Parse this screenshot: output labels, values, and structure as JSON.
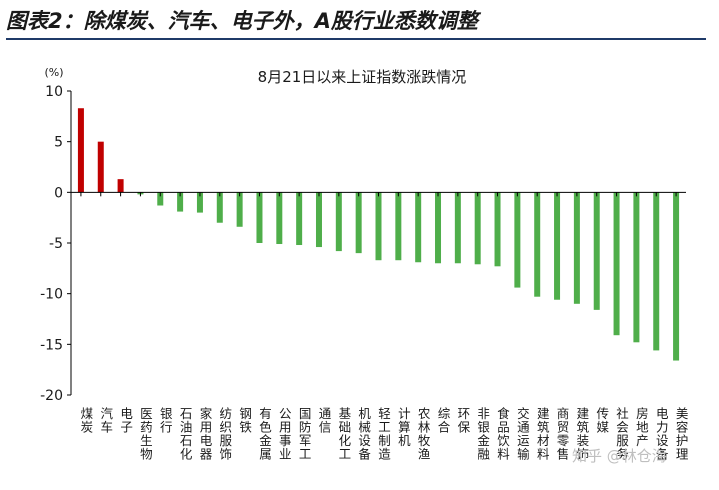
{
  "figure_title": "图表2：除煤炭、汽车、电子外，A股行业悉数调整",
  "watermark": "知乎 @林仓海",
  "colors": {
    "positive": "#c00000",
    "negative": "#4fae4a",
    "axis": "#000000",
    "rule": "#1f3a68"
  },
  "chart_data": {
    "type": "bar",
    "title": "8月21日以来上证指数涨跌情况",
    "unit_label": "(%)",
    "xlabel": "",
    "ylabel": "",
    "ylim": [
      -20,
      10
    ],
    "yticks": [
      10,
      5,
      0,
      -5,
      -10,
      -15,
      -20
    ],
    "grid": false,
    "categories": [
      "煤炭",
      "汽车",
      "电子",
      "医药生物",
      "银行",
      "石油石化",
      "家用电器",
      "纺织服饰",
      "钢铁",
      "有色金属",
      "公用事业",
      "国防军工",
      "通信",
      "基础化工",
      "机械设备",
      "轻工制造",
      "计算机",
      "农林牧渔",
      "综合",
      "环保",
      "非银金融",
      "食品饮料",
      "交通运输",
      "建筑材料",
      "商贸零售",
      "建筑装饰",
      "传媒",
      "社会服务",
      "房地产",
      "电力设备",
      "美容护理"
    ],
    "values": [
      8.3,
      5.0,
      1.3,
      -0.2,
      -1.3,
      -1.9,
      -2.0,
      -3.0,
      -3.4,
      -5.0,
      -5.1,
      -5.2,
      -5.4,
      -5.8,
      -6.0,
      -6.7,
      -6.7,
      -6.9,
      -7.0,
      -7.0,
      -7.1,
      -7.3,
      -9.4,
      -10.3,
      -10.6,
      -11.0,
      -11.6,
      -14.1,
      -14.8,
      -15.6,
      -16.6
    ]
  }
}
